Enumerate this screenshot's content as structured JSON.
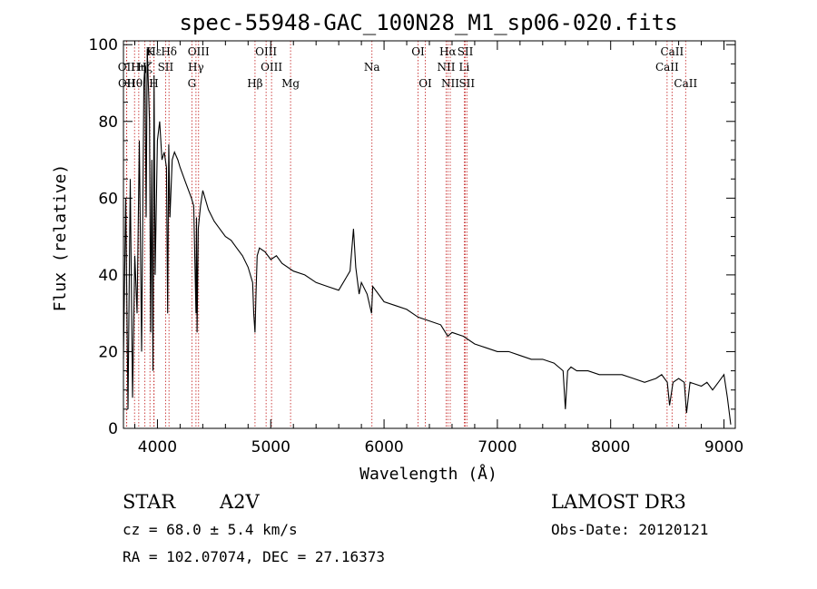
{
  "chart_data": {
    "type": "line",
    "title": "spec-55948-GAC_100N28_M1_sp06-020.fits",
    "xlabel": "Wavelength (Å)",
    "ylabel": "Flux (relative)",
    "xlim": [
      3700,
      9100
    ],
    "ylim": [
      0,
      101
    ],
    "x_ticks": [
      4000,
      5000,
      6000,
      7000,
      8000,
      9000
    ],
    "y_ticks": [
      0,
      20,
      40,
      60,
      80,
      100
    ],
    "series": [
      {
        "name": "spectrum",
        "x": [
          3700,
          3720,
          3740,
          3760,
          3780,
          3800,
          3820,
          3840,
          3860,
          3880,
          3890,
          3900,
          3910,
          3930,
          3940,
          3950,
          3960,
          3970,
          3980,
          4000,
          4020,
          4040,
          4060,
          4080,
          4090,
          4100,
          4110,
          4130,
          4150,
          4180,
          4200,
          4250,
          4300,
          4320,
          4340,
          4345,
          4350,
          4360,
          4380,
          4400,
          4450,
          4500,
          4550,
          4600,
          4650,
          4700,
          4750,
          4800,
          4840,
          4850,
          4861,
          4870,
          4880,
          4900,
          4950,
          5000,
          5050,
          5100,
          5200,
          5300,
          5400,
          5500,
          5600,
          5700,
          5730,
          5750,
          5780,
          5800,
          5850,
          5890,
          5900,
          6000,
          6100,
          6200,
          6300,
          6400,
          6500,
          6563,
          6600,
          6700,
          6800,
          6900,
          7000,
          7100,
          7200,
          7300,
          7400,
          7500,
          7580,
          7600,
          7620,
          7650,
          7700,
          7800,
          7900,
          8000,
          8100,
          8200,
          8300,
          8400,
          8450,
          8500,
          8520,
          8550,
          8600,
          8650,
          8670,
          8700,
          8800,
          8850,
          8900,
          8950,
          9000,
          9030,
          9060
        ],
        "y": [
          18,
          60,
          5,
          65,
          8,
          45,
          30,
          75,
          20,
          90,
          95,
          55,
          99,
          80,
          25,
          70,
          15,
          92,
          40,
          75,
          80,
          70,
          72,
          68,
          30,
          74,
          55,
          70,
          72,
          70,
          68,
          64,
          60,
          58,
          30,
          55,
          25,
          52,
          58,
          62,
          57,
          54,
          52,
          50,
          49,
          47,
          45,
          42,
          38,
          30,
          25,
          35,
          45,
          47,
          46,
          44,
          45,
          43,
          41,
          40,
          38,
          37,
          36,
          41,
          52,
          42,
          35,
          38,
          35,
          30,
          37,
          33,
          32,
          31,
          29,
          28,
          27,
          24,
          25,
          24,
          22,
          21,
          20,
          20,
          19,
          18,
          18,
          17,
          15,
          5,
          15,
          16,
          15,
          15,
          14,
          14,
          14,
          13,
          12,
          13,
          14,
          12,
          6,
          12,
          13,
          12,
          4,
          12,
          11,
          12,
          10,
          12,
          14,
          8,
          1
        ]
      }
    ],
    "lines": [
      {
        "label": "Hε",
        "x": 3970,
        "row": 1
      },
      {
        "label": "K",
        "x": 3934,
        "row": 1
      },
      {
        "label": "Hδ",
        "x": 4102,
        "row": 1
      },
      {
        "label": "OIII",
        "x": 4363,
        "row": 1
      },
      {
        "label": "OIII",
        "x": 4959,
        "row": 1
      },
      {
        "label": "OI",
        "x": 6300,
        "row": 1
      },
      {
        "label": "Hα",
        "x": 6563,
        "row": 1
      },
      {
        "label": "SII",
        "x": 6717,
        "row": 1
      },
      {
        "label": "CaII",
        "x": 8542,
        "row": 1
      },
      {
        "label": "OII",
        "x": 3727,
        "row": 2
      },
      {
        "label": "Hη",
        "x": 3835,
        "row": 2
      },
      {
        "label": "Hζ",
        "x": 3889,
        "row": 2
      },
      {
        "label": "SII",
        "x": 4072,
        "row": 2
      },
      {
        "label": "Hγ",
        "x": 4340,
        "row": 2
      },
      {
        "label": "OIII",
        "x": 5007,
        "row": 2
      },
      {
        "label": "Na",
        "x": 5893,
        "row": 2
      },
      {
        "label": "NII",
        "x": 6548,
        "row": 2
      },
      {
        "label": "Li",
        "x": 6708,
        "row": 2
      },
      {
        "label": "CaII",
        "x": 8498,
        "row": 2
      },
      {
        "label": "OII",
        "x": 3729,
        "row": 3
      },
      {
        "label": "Hθ",
        "x": 3798,
        "row": 3
      },
      {
        "label": "H",
        "x": 3968,
        "row": 3
      },
      {
        "label": "G",
        "x": 4304,
        "row": 3
      },
      {
        "label": "Hβ",
        "x": 4861,
        "row": 3
      },
      {
        "label": "Mg",
        "x": 5175,
        "row": 3
      },
      {
        "label": "OI",
        "x": 6364,
        "row": 3
      },
      {
        "label": "NII",
        "x": 6584,
        "row": 3
      },
      {
        "label": "SII",
        "x": 6731,
        "row": 3
      },
      {
        "label": "CaII",
        "x": 8662,
        "row": 3
      }
    ]
  },
  "info": {
    "object_class": "STAR",
    "subclass": "A2V",
    "survey": "LAMOST DR3",
    "cz": "cz = 68.0 ± 5.4 km/s",
    "obs_date": "Obs-Date: 20120121",
    "coords": "RA = 102.07074, DEC =  27.16373"
  }
}
